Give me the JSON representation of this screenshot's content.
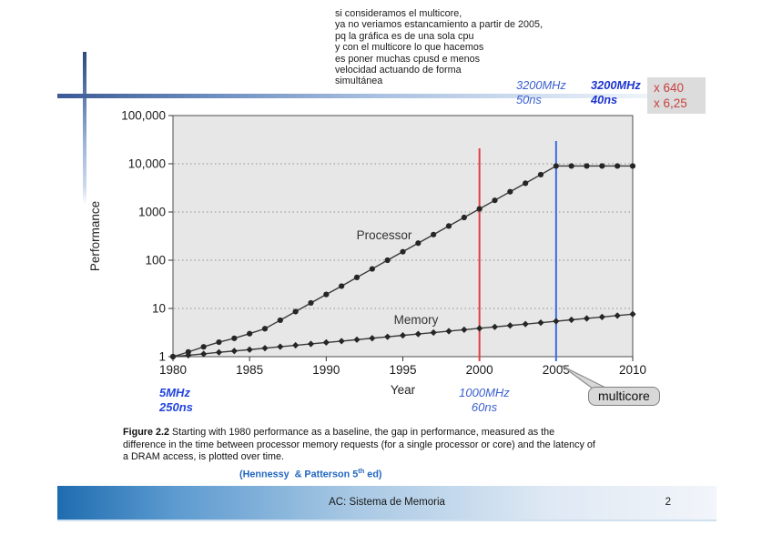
{
  "note": {
    "text": "si consideramos el multicore,\nya no veriamos estancamiento a partir de 2005,\npq la gráfica es de una sola cpu\ny con el multicore lo que hacemos\nes poner muchas cpusd e menos\nvelocidad actuando de forma\nsimultánea"
  },
  "annotations": {
    "top_2000": {
      "freq": "3200MHz",
      "latency": "50ns"
    },
    "top_2005": {
      "freq": "3200MHz",
      "latency": "40ns"
    },
    "ratios": {
      "line1": "x 640",
      "line2": "x 6,25"
    },
    "bottom_1980": {
      "freq": "5MHz",
      "latency": "250ns"
    },
    "bottom_2000": {
      "freq": "1000MHz",
      "latency": "60ns"
    },
    "multicore": "multicore",
    "colors": {
      "blue_light": "#3a5fd0",
      "blue_bold": "#1c35cf",
      "red": "#c94040"
    }
  },
  "chart_data": {
    "type": "line",
    "title": "",
    "xlabel": "Year",
    "ylabel": "Performance",
    "y_scale": "log",
    "xlim": [
      1980,
      2010
    ],
    "ylim": [
      1,
      100000
    ],
    "x_ticks": [
      1980,
      1985,
      1990,
      1995,
      2000,
      2005,
      2010
    ],
    "y_ticks": [
      "1",
      "10",
      "100",
      "1000",
      "10,000",
      "100,000"
    ],
    "grid": "dotted horizontal at each decade",
    "legend_position": "inline labels on curves",
    "x": [
      1980,
      1981,
      1982,
      1983,
      1984,
      1985,
      1986,
      1987,
      1988,
      1989,
      1990,
      1991,
      1992,
      1993,
      1994,
      1995,
      1996,
      1997,
      1998,
      1999,
      2000,
      2001,
      2002,
      2003,
      2004,
      2005,
      2006,
      2007,
      2008,
      2009,
      2010
    ],
    "series": [
      {
        "name": "Processor",
        "values": [
          1,
          1.25,
          1.6,
          2,
          2.4,
          3,
          3.8,
          5.7,
          8.6,
          13,
          19.5,
          29,
          44,
          66,
          100,
          150,
          226,
          340,
          512,
          770,
          1160,
          1745,
          2630,
          3950,
          5950,
          9000,
          9000,
          9000,
          9000,
          9000,
          9000
        ]
      },
      {
        "name": "Memory",
        "values": [
          1,
          1.07,
          1.14,
          1.23,
          1.31,
          1.4,
          1.5,
          1.61,
          1.72,
          1.84,
          1.97,
          2.1,
          2.25,
          2.41,
          2.58,
          2.76,
          2.95,
          3.16,
          3.38,
          3.62,
          3.87,
          4.14,
          4.43,
          4.74,
          5.07,
          5.43,
          5.81,
          6.21,
          6.65,
          7.11,
          7.61
        ]
      }
    ],
    "vlines": [
      {
        "x": 2000,
        "color": "#e04040"
      },
      {
        "x": 2005,
        "color": "#3c6ae4"
      }
    ]
  },
  "caption": {
    "figure_label": "Figure 2.2",
    "line1": " Starting with 1980 performance as a baseline, the gap in performance, measured as the",
    "line2": "difference in the time between processor memory requests (for a single processor or core) and the latency of",
    "line3": "a DRAM access, is plotted over time.",
    "credit_pre": "(Hennessy  & Patterson 5",
    "credit_sup": "th",
    "credit_post": " ed)"
  },
  "footer": {
    "title": "AC: Sistema de Memoria",
    "page": "2"
  }
}
